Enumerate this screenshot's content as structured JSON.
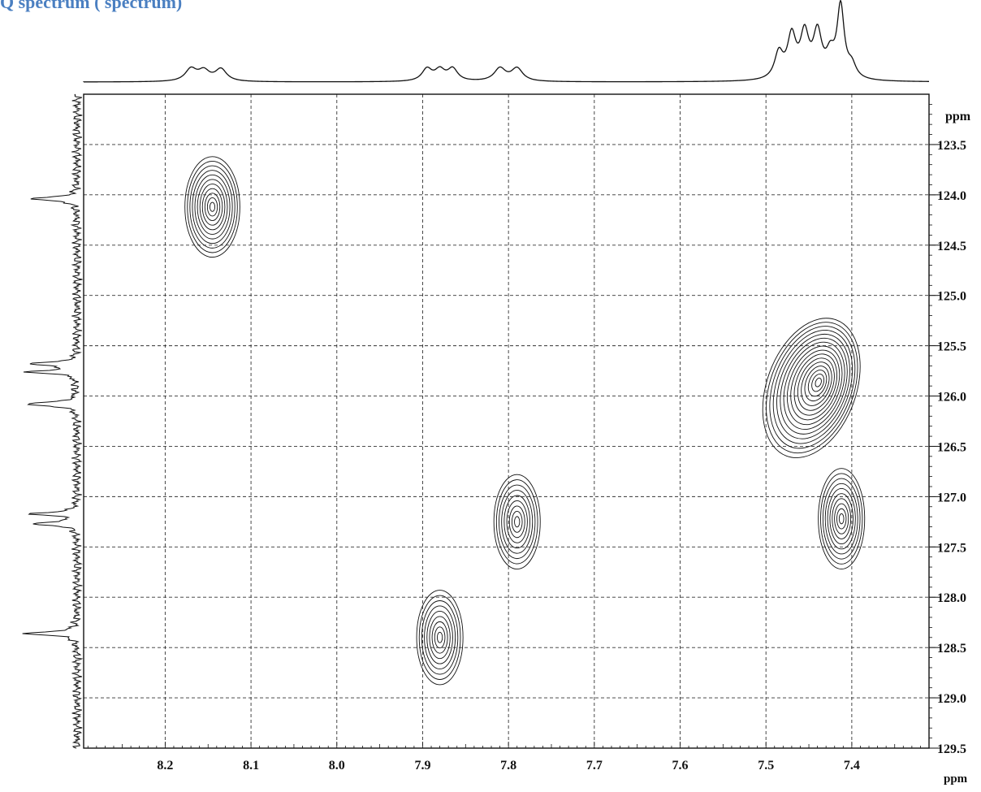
{
  "header": {
    "title_fragment": "Q   spectrum (     spectrum)"
  },
  "chart_data": {
    "type": "heatmap",
    "subtype": "2D NMR HSQC contour plot",
    "x_axis": {
      "label": "ppm",
      "reversed": true,
      "range": [
        8.295,
        7.31
      ],
      "ticks": [
        8.2,
        8.1,
        8.0,
        7.9,
        7.8,
        7.7,
        7.6,
        7.5,
        7.4
      ],
      "tick_labels": [
        "8.2",
        "8.1",
        "8.0",
        "7.9",
        "7.8",
        "7.7",
        "7.6",
        "7.5",
        "7.4"
      ]
    },
    "y_axis": {
      "label": "ppm",
      "position": "right",
      "range": [
        123.0,
        129.5
      ],
      "ticks": [
        123.5,
        124.0,
        124.5,
        125.0,
        125.5,
        126.0,
        126.5,
        127.0,
        127.5,
        128.0,
        128.5,
        129.0,
        129.5
      ],
      "tick_labels": [
        "123.5",
        "124.0",
        "124.5",
        "125.0",
        "125.5",
        "126.0",
        "126.5",
        "127.0",
        "127.5",
        "128.0",
        "128.5",
        "129.0",
        "129.5"
      ]
    },
    "grid": true,
    "grid_style": "dashed",
    "cross_peaks": [
      {
        "h_ppm": 8.145,
        "c_ppm": 124.12,
        "h_halfwidth": 0.032,
        "c_halfwidth": 0.5,
        "tilt": 0,
        "levels": 11
      },
      {
        "h_ppm": 7.79,
        "c_ppm": 127.25,
        "h_halfwidth": 0.027,
        "c_halfwidth": 0.47,
        "tilt": 0,
        "levels": 9
      },
      {
        "h_ppm": 7.88,
        "c_ppm": 128.4,
        "h_halfwidth": 0.027,
        "c_halfwidth": 0.47,
        "tilt": 0,
        "levels": 9
      },
      {
        "h_ppm": 7.447,
        "c_ppm": 125.92,
        "h_halfwidth": 0.052,
        "c_halfwidth": 0.72,
        "tilt": 20,
        "levels": 16
      },
      {
        "h_ppm": 7.412,
        "c_ppm": 127.22,
        "h_halfwidth": 0.027,
        "c_halfwidth": 0.5,
        "tilt": 0,
        "levels": 10
      }
    ],
    "projection_1H": [
      {
        "ppm": 8.17,
        "height": 0.17,
        "width": 0.008
      },
      {
        "ppm": 8.155,
        "height": 0.14,
        "width": 0.008
      },
      {
        "ppm": 8.135,
        "height": 0.17,
        "width": 0.008
      },
      {
        "ppm": 7.895,
        "height": 0.17,
        "width": 0.007
      },
      {
        "ppm": 7.88,
        "height": 0.15,
        "width": 0.007
      },
      {
        "ppm": 7.865,
        "height": 0.17,
        "width": 0.007
      },
      {
        "ppm": 7.81,
        "height": 0.18,
        "width": 0.008
      },
      {
        "ppm": 7.79,
        "height": 0.18,
        "width": 0.008
      },
      {
        "ppm": 7.485,
        "height": 0.36,
        "width": 0.006
      },
      {
        "ppm": 7.47,
        "height": 0.58,
        "width": 0.006
      },
      {
        "ppm": 7.455,
        "height": 0.6,
        "width": 0.006
      },
      {
        "ppm": 7.44,
        "height": 0.62,
        "width": 0.006
      },
      {
        "ppm": 7.425,
        "height": 0.3,
        "width": 0.006
      },
      {
        "ppm": 7.413,
        "height": 1.0,
        "width": 0.005
      },
      {
        "ppm": 7.4,
        "height": 0.18,
        "width": 0.006
      }
    ],
    "projection_13C": [
      {
        "ppm": 124.04,
        "height": 0.8,
        "width": 0.02
      },
      {
        "ppm": 125.68,
        "height": 0.82,
        "width": 0.018
      },
      {
        "ppm": 125.76,
        "height": 0.82,
        "width": 0.018
      },
      {
        "ppm": 126.08,
        "height": 0.92,
        "width": 0.02
      },
      {
        "ppm": 127.17,
        "height": 0.78,
        "width": 0.018
      },
      {
        "ppm": 127.27,
        "height": 0.78,
        "width": 0.018
      },
      {
        "ppm": 128.36,
        "height": 0.88,
        "width": 0.02
      }
    ]
  }
}
